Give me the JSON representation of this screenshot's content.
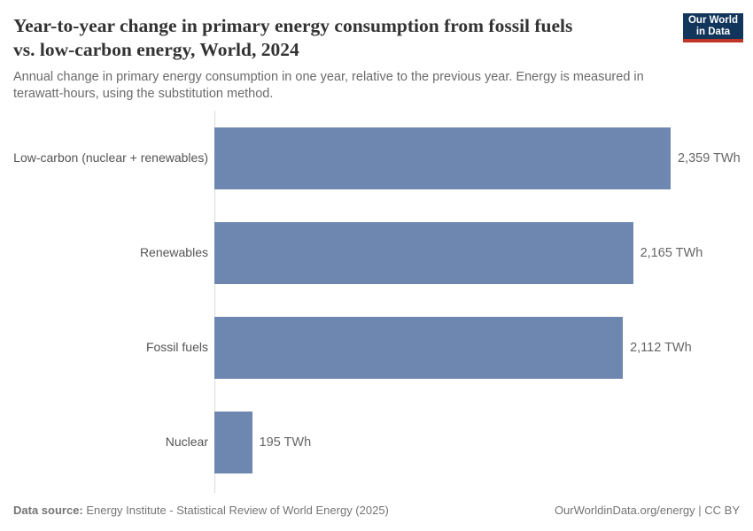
{
  "header": {
    "title_lines": [
      "Year-to-year change in primary energy consumption from fossil fuels",
      "vs. low-carbon energy, World, 2024"
    ],
    "subtitle": "Annual change in primary energy consumption in one year, relative to the previous year. Energy is measured in terawatt-hours, using the substitution method.",
    "logo": {
      "line1": "Our World",
      "line2": "in Data"
    }
  },
  "chart_data": {
    "type": "bar",
    "orientation": "horizontal",
    "title": "Year-to-year change in primary energy consumption from fossil fuels vs. low-carbon energy, World, 2024",
    "categories": [
      "Low-carbon (nuclear + renewables)",
      "Renewables",
      "Fossil fuels",
      "Nuclear"
    ],
    "values": [
      2359,
      2165,
      2112,
      195
    ],
    "value_labels": [
      "2,359 TWh",
      "2,165 TWh",
      "2,112 TWh",
      "195 TWh"
    ],
    "unit": "TWh",
    "xlim": [
      0,
      2359
    ],
    "grid": false,
    "legend": "none"
  },
  "footer": {
    "source_label": "Data source:",
    "source_text": " Energy Institute - Statistical Review of World Energy (2025)",
    "credit": "OurWorldinData.org/energy | CC BY"
  },
  "theme": {
    "bar_color": "#6d87b0",
    "axis_color": "#dadada",
    "logo_bg": "#12355b",
    "logo_accent": "#bf3627"
  }
}
